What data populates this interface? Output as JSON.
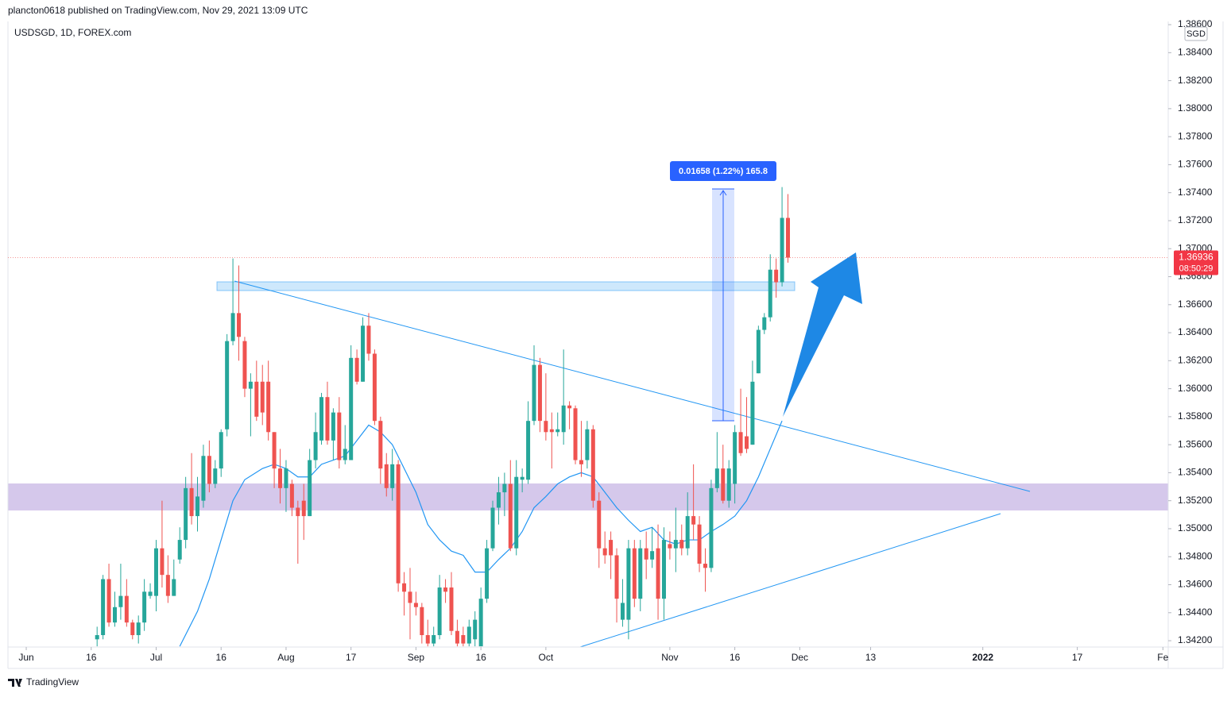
{
  "header": {
    "published": "plancton0618 published on TradingView.com, Nov 29, 2021 13:09 UTC"
  },
  "chart_data": {
    "type": "candlestick",
    "title": "USDSGD, 1D, FOREX.com",
    "currency": "SGD",
    "up_color": "#26a69a",
    "down_color": "#ef5350",
    "x": [
      12,
      13,
      14,
      15,
      16,
      17,
      18,
      19,
      20,
      21,
      22,
      23,
      24,
      25,
      26,
      27,
      28,
      29,
      30,
      31,
      32,
      33,
      34,
      35,
      36,
      37,
      38,
      39,
      40,
      41,
      42,
      43,
      44,
      45,
      46,
      47,
      48,
      49,
      50,
      51,
      52,
      53,
      54,
      55,
      56,
      57,
      58,
      59,
      60,
      61,
      62,
      63,
      64,
      65,
      66,
      67,
      68,
      69,
      70,
      71,
      72,
      73,
      74,
      75,
      76,
      77,
      78,
      79,
      80,
      81,
      82,
      83,
      84,
      85,
      86,
      87,
      88,
      89,
      90,
      91,
      92,
      93,
      94,
      95,
      96,
      97,
      98,
      99,
      100,
      101,
      102,
      103,
      104,
      105,
      106,
      107,
      108,
      109,
      110,
      111,
      112,
      113,
      114,
      115,
      116,
      117,
      118,
      119,
      120,
      121,
      122,
      123,
      124,
      125,
      126,
      127,
      128,
      129
    ],
    "ohlc": [
      [
        1.3421,
        1.343,
        1.3416,
        1.3424
      ],
      [
        1.3424,
        1.3467,
        1.3421,
        1.3464
      ],
      [
        1.3464,
        1.3475,
        1.343,
        1.3433
      ],
      [
        1.3433,
        1.3455,
        1.343,
        1.3444
      ],
      [
        1.3444,
        1.3475,
        1.3435,
        1.3452
      ],
      [
        1.3452,
        1.3464,
        1.343,
        1.3433
      ],
      [
        1.3433,
        1.3435,
        1.3421,
        1.3424
      ],
      [
        1.3424,
        1.3438,
        1.3418,
        1.3433
      ],
      [
        1.3433,
        1.3464,
        1.3427,
        1.3455
      ],
      [
        1.3452,
        1.3461,
        1.345,
        1.3455
      ],
      [
        1.3452,
        1.3492,
        1.3441,
        1.3486
      ],
      [
        1.3486,
        1.352,
        1.3458,
        1.3467
      ],
      [
        1.3467,
        1.3481,
        1.3447,
        1.3452
      ],
      [
        1.3452,
        1.3478,
        1.3452,
        1.3464
      ],
      [
        1.3478,
        1.3501,
        1.3475,
        1.3492
      ],
      [
        1.3492,
        1.3537,
        1.3486,
        1.3529
      ],
      [
        1.3529,
        1.3554,
        1.3503,
        1.3509
      ],
      [
        1.3509,
        1.3537,
        1.3498,
        1.3523
      ],
      [
        1.352,
        1.356,
        1.3515,
        1.3552
      ],
      [
        1.3552,
        1.3563,
        1.3526,
        1.3532
      ],
      [
        1.3532,
        1.3549,
        1.3529,
        1.3543
      ],
      [
        1.3543,
        1.3571,
        1.3537,
        1.3569
      ],
      [
        1.3571,
        1.3639,
        1.3566,
        1.3634
      ],
      [
        1.3634,
        1.3693,
        1.3631,
        1.3654
      ],
      [
        1.3654,
        1.3688,
        1.362,
        1.3637
      ],
      [
        1.3634,
        1.3637,
        1.3594,
        1.36
      ],
      [
        1.36,
        1.3611,
        1.3566,
        1.3605
      ],
      [
        1.3605,
        1.362,
        1.3577,
        1.358
      ],
      [
        1.3605,
        1.3617,
        1.3574,
        1.3583
      ],
      [
        1.3605,
        1.362,
        1.3563,
        1.3569
      ],
      [
        1.3569,
        1.3569,
        1.3529,
        1.3543
      ],
      [
        1.3543,
        1.3557,
        1.3518,
        1.3529
      ],
      [
        1.3529,
        1.3549,
        1.3512,
        1.3543
      ],
      [
        1.3532,
        1.3535,
        1.3509,
        1.3515
      ],
      [
        1.3515,
        1.352,
        1.3475,
        1.3509
      ],
      [
        1.352,
        1.3532,
        1.3492,
        1.3509
      ],
      [
        1.3509,
        1.3557,
        1.3509,
        1.3549
      ],
      [
        1.3549,
        1.3583,
        1.3543,
        1.3569
      ],
      [
        1.3563,
        1.3597,
        1.356,
        1.3594
      ],
      [
        1.3594,
        1.3605,
        1.356,
        1.3563
      ],
      [
        1.3563,
        1.3586,
        1.3549,
        1.3583
      ],
      [
        1.3583,
        1.3594,
        1.3543,
        1.3549
      ],
      [
        1.3549,
        1.3574,
        1.3546,
        1.3557
      ],
      [
        1.3549,
        1.3631,
        1.3549,
        1.3622
      ],
      [
        1.3622,
        1.3628,
        1.3603,
        1.3605
      ],
      [
        1.3605,
        1.3651,
        1.3605,
        1.3645
      ],
      [
        1.3645,
        1.3654,
        1.362,
        1.3625
      ],
      [
        1.3625,
        1.3628,
        1.3574,
        1.3577
      ],
      [
        1.3577,
        1.358,
        1.3532,
        1.3543
      ],
      [
        1.3546,
        1.3554,
        1.3523,
        1.3529
      ],
      [
        1.3529,
        1.3557,
        1.352,
        1.3546
      ],
      [
        1.3546,
        1.3549,
        1.3455,
        1.3461
      ],
      [
        1.3461,
        1.3469,
        1.3438,
        1.3455
      ],
      [
        1.3455,
        1.3472,
        1.3421,
        1.3447
      ],
      [
        1.3447,
        1.3455,
        1.3438,
        1.3444
      ],
      [
        1.3444,
        1.3447,
        1.3418,
        1.3424
      ],
      [
        1.3424,
        1.3435,
        1.3416,
        1.3418
      ],
      [
        1.3418,
        1.343,
        1.3416,
        1.3424
      ],
      [
        1.3424,
        1.3467,
        1.3421,
        1.3458
      ],
      [
        1.3458,
        1.3464,
        1.3447,
        1.3455
      ],
      [
        1.3458,
        1.3469,
        1.3424,
        1.3427
      ],
      [
        1.3427,
        1.3435,
        1.3416,
        1.3418
      ],
      [
        1.3424,
        1.343,
        1.3416,
        1.3418
      ],
      [
        1.3418,
        1.3435,
        1.3416,
        1.343
      ],
      [
        1.3421,
        1.3441,
        1.3416,
        1.3435
      ],
      [
        1.3416,
        1.3458,
        1.3416,
        1.345
      ],
      [
        1.345,
        1.3492,
        1.3447,
        1.3486
      ],
      [
        1.3486,
        1.352,
        1.3484,
        1.3515
      ],
      [
        1.3515,
        1.3537,
        1.3503,
        1.3526
      ],
      [
        1.3526,
        1.354,
        1.3509,
        1.3532
      ],
      [
        1.3532,
        1.3549,
        1.3484,
        1.3486
      ],
      [
        1.3486,
        1.3549,
        1.3481,
        1.3537
      ],
      [
        1.3535,
        1.3543,
        1.3526,
        1.3537
      ],
      [
        1.3535,
        1.3591,
        1.3532,
        1.3577
      ],
      [
        1.3577,
        1.3631,
        1.3574,
        1.3617
      ],
      [
        1.3617,
        1.3622,
        1.3569,
        1.3577
      ],
      [
        1.3577,
        1.3611,
        1.3563,
        1.3569
      ],
      [
        1.3571,
        1.3583,
        1.3543,
        1.3569
      ],
      [
        1.3569,
        1.3583,
        1.3566,
        1.3571
      ],
      [
        1.3569,
        1.3628,
        1.356,
        1.3588
      ],
      [
        1.3588,
        1.3591,
        1.3571,
        1.3586
      ],
      [
        1.3586,
        1.3588,
        1.3546,
        1.3549
      ],
      [
        1.3549,
        1.3577,
        1.3537,
        1.3546
      ],
      [
        1.3549,
        1.3577,
        1.3543,
        1.3571
      ],
      [
        1.3571,
        1.3574,
        1.3515,
        1.352
      ],
      [
        1.352,
        1.3526,
        1.3472,
        1.3486
      ],
      [
        1.3486,
        1.3498,
        1.3475,
        1.3481
      ],
      [
        1.3492,
        1.3498,
        1.3464,
        1.3481
      ],
      [
        1.3481,
        1.3486,
        1.3433,
        1.345
      ],
      [
        1.3435,
        1.3464,
        1.343,
        1.3447
      ],
      [
        1.3435,
        1.3492,
        1.3421,
        1.3486
      ],
      [
        1.3486,
        1.3492,
        1.3444,
        1.345
      ],
      [
        1.345,
        1.3492,
        1.3441,
        1.3486
      ],
      [
        1.3486,
        1.3498,
        1.3464,
        1.3478
      ],
      [
        1.3478,
        1.3501,
        1.3472,
        1.3484
      ],
      [
        1.3486,
        1.3503,
        1.3435,
        1.345
      ],
      [
        1.345,
        1.3501,
        1.3435,
        1.3492
      ],
      [
        1.3489,
        1.3498,
        1.3478,
        1.3486
      ],
      [
        1.3486,
        1.3515,
        1.3469,
        1.3492
      ],
      [
        1.3492,
        1.3503,
        1.3481,
        1.3486
      ],
      [
        1.3486,
        1.3526,
        1.3481,
        1.3509
      ],
      [
        1.3509,
        1.3546,
        1.3492,
        1.3503
      ],
      [
        1.3503,
        1.3509,
        1.3469,
        1.3475
      ],
      [
        1.3475,
        1.3486,
        1.3455,
        1.3472
      ],
      [
        1.3472,
        1.3535,
        1.3469,
        1.3529
      ],
      [
        1.3529,
        1.3569,
        1.3526,
        1.3543
      ],
      [
        1.3543,
        1.356,
        1.3518,
        1.352
      ],
      [
        1.352,
        1.3549,
        1.3515,
        1.3543
      ],
      [
        1.3532,
        1.3574,
        1.3518,
        1.3569
      ],
      [
        1.3569,
        1.36,
        1.3552,
        1.3554
      ],
      [
        1.3566,
        1.3594,
        1.3554,
        1.3557
      ],
      [
        1.356,
        1.362,
        1.356,
        1.3605
      ],
      [
        1.3611,
        1.3645,
        1.3611,
        1.3642
      ],
      [
        1.3642,
        1.3654,
        1.3639,
        1.3651
      ],
      [
        1.3651,
        1.3696,
        1.3648,
        1.3685
      ],
      [
        1.3685,
        1.3693,
        1.3665,
        1.3676
      ],
      [
        1.3676,
        1.3744,
        1.3673,
        1.3722
      ],
      [
        1.3722,
        1.3739,
        1.369,
        1.36936
      ]
    ],
    "overlay": {
      "type": "line",
      "color": "#2196f3",
      "x": [
        26,
        29,
        31,
        33,
        35,
        37,
        40,
        42,
        44,
        46,
        48,
        50,
        52,
        54,
        56,
        58,
        60,
        62,
        64,
        66,
        68,
        70,
        72,
        74,
        76,
        78,
        80,
        82,
        84,
        86,
        88,
        90,
        92,
        94,
        96,
        98,
        100,
        102,
        104,
        106,
        108,
        110,
        112,
        114,
        116,
        118,
        120,
        122,
        124,
        126,
        128
      ],
      "values": [
        1.3416,
        1.3441,
        1.3464,
        1.3492,
        1.352,
        1.3535,
        1.3543,
        1.3546,
        1.3543,
        1.3537,
        1.3537,
        1.3546,
        1.3549,
        1.3552,
        1.3563,
        1.3574,
        1.3569,
        1.356,
        1.3543,
        1.3526,
        1.3503,
        1.3492,
        1.3484,
        1.3481,
        1.3469,
        1.3469,
        1.3478,
        1.3486,
        1.3498,
        1.3515,
        1.3523,
        1.3532,
        1.3537,
        1.354,
        1.3537,
        1.3526,
        1.3515,
        1.3506,
        1.3498,
        1.3501,
        1.3492,
        1.3489,
        1.3492,
        1.3492,
        1.3498,
        1.3503,
        1.3509,
        1.352,
        1.3537,
        1.3557,
        1.3577
      ]
    },
    "xlim": [
      -3.1,
      193.4
    ],
    "xticks": [
      {
        "value": 0,
        "label": "Jun"
      },
      {
        "value": 11,
        "label": "16"
      },
      {
        "value": 22,
        "label": "Jul"
      },
      {
        "value": 33,
        "label": "16"
      },
      {
        "value": 44,
        "label": "Aug"
      },
      {
        "value": 55,
        "label": "17"
      },
      {
        "value": 66,
        "label": "Sep"
      },
      {
        "value": 77,
        "label": "16"
      },
      {
        "value": 88,
        "label": "Oct"
      },
      {
        "value": 109,
        "label": "Nov"
      },
      {
        "value": 120,
        "label": "16"
      },
      {
        "value": 131,
        "label": "Dec"
      },
      {
        "value": 143,
        "label": "13"
      },
      {
        "value": 162,
        "label": "2022"
      },
      {
        "value": 178,
        "label": "17"
      },
      {
        "value": 192.5,
        "label": "Fe"
      }
    ],
    "ylim": [
      1.34155,
      1.38623
    ],
    "yticks": [
      {
        "value": 1.342,
        "label": "1.34200"
      },
      {
        "value": 1.344,
        "label": "1.34400"
      },
      {
        "value": 1.346,
        "label": "1.34600"
      },
      {
        "value": 1.348,
        "label": "1.34800"
      },
      {
        "value": 1.35,
        "label": "1.35000"
      },
      {
        "value": 1.352,
        "label": "1.35200"
      },
      {
        "value": 1.354,
        "label": "1.35400"
      },
      {
        "value": 1.356,
        "label": "1.35600"
      },
      {
        "value": 1.358,
        "label": "1.35800"
      },
      {
        "value": 1.36,
        "label": "1.36000"
      },
      {
        "value": 1.362,
        "label": "1.36200"
      },
      {
        "value": 1.364,
        "label": "1.36400"
      },
      {
        "value": 1.366,
        "label": "1.36600"
      },
      {
        "value": 1.368,
        "label": "1.36800"
      },
      {
        "value": 1.37,
        "label": "1.37000"
      },
      {
        "value": 1.372,
        "label": "1.37200"
      },
      {
        "value": 1.374,
        "label": "1.37400"
      },
      {
        "value": 1.376,
        "label": "1.37600"
      },
      {
        "value": 1.378,
        "label": "1.37800"
      },
      {
        "value": 1.38,
        "label": "1.38000"
      },
      {
        "value": 1.382,
        "label": "1.38200"
      },
      {
        "value": 1.384,
        "label": "1.38400"
      },
      {
        "value": 1.386,
        "label": "1.38600"
      }
    ],
    "measure": {
      "label": "0.01658 (1.22%) 165.8"
    },
    "last_price": {
      "countdown": "08:50:29"
    }
  },
  "footer": {
    "brand": "TradingView"
  }
}
